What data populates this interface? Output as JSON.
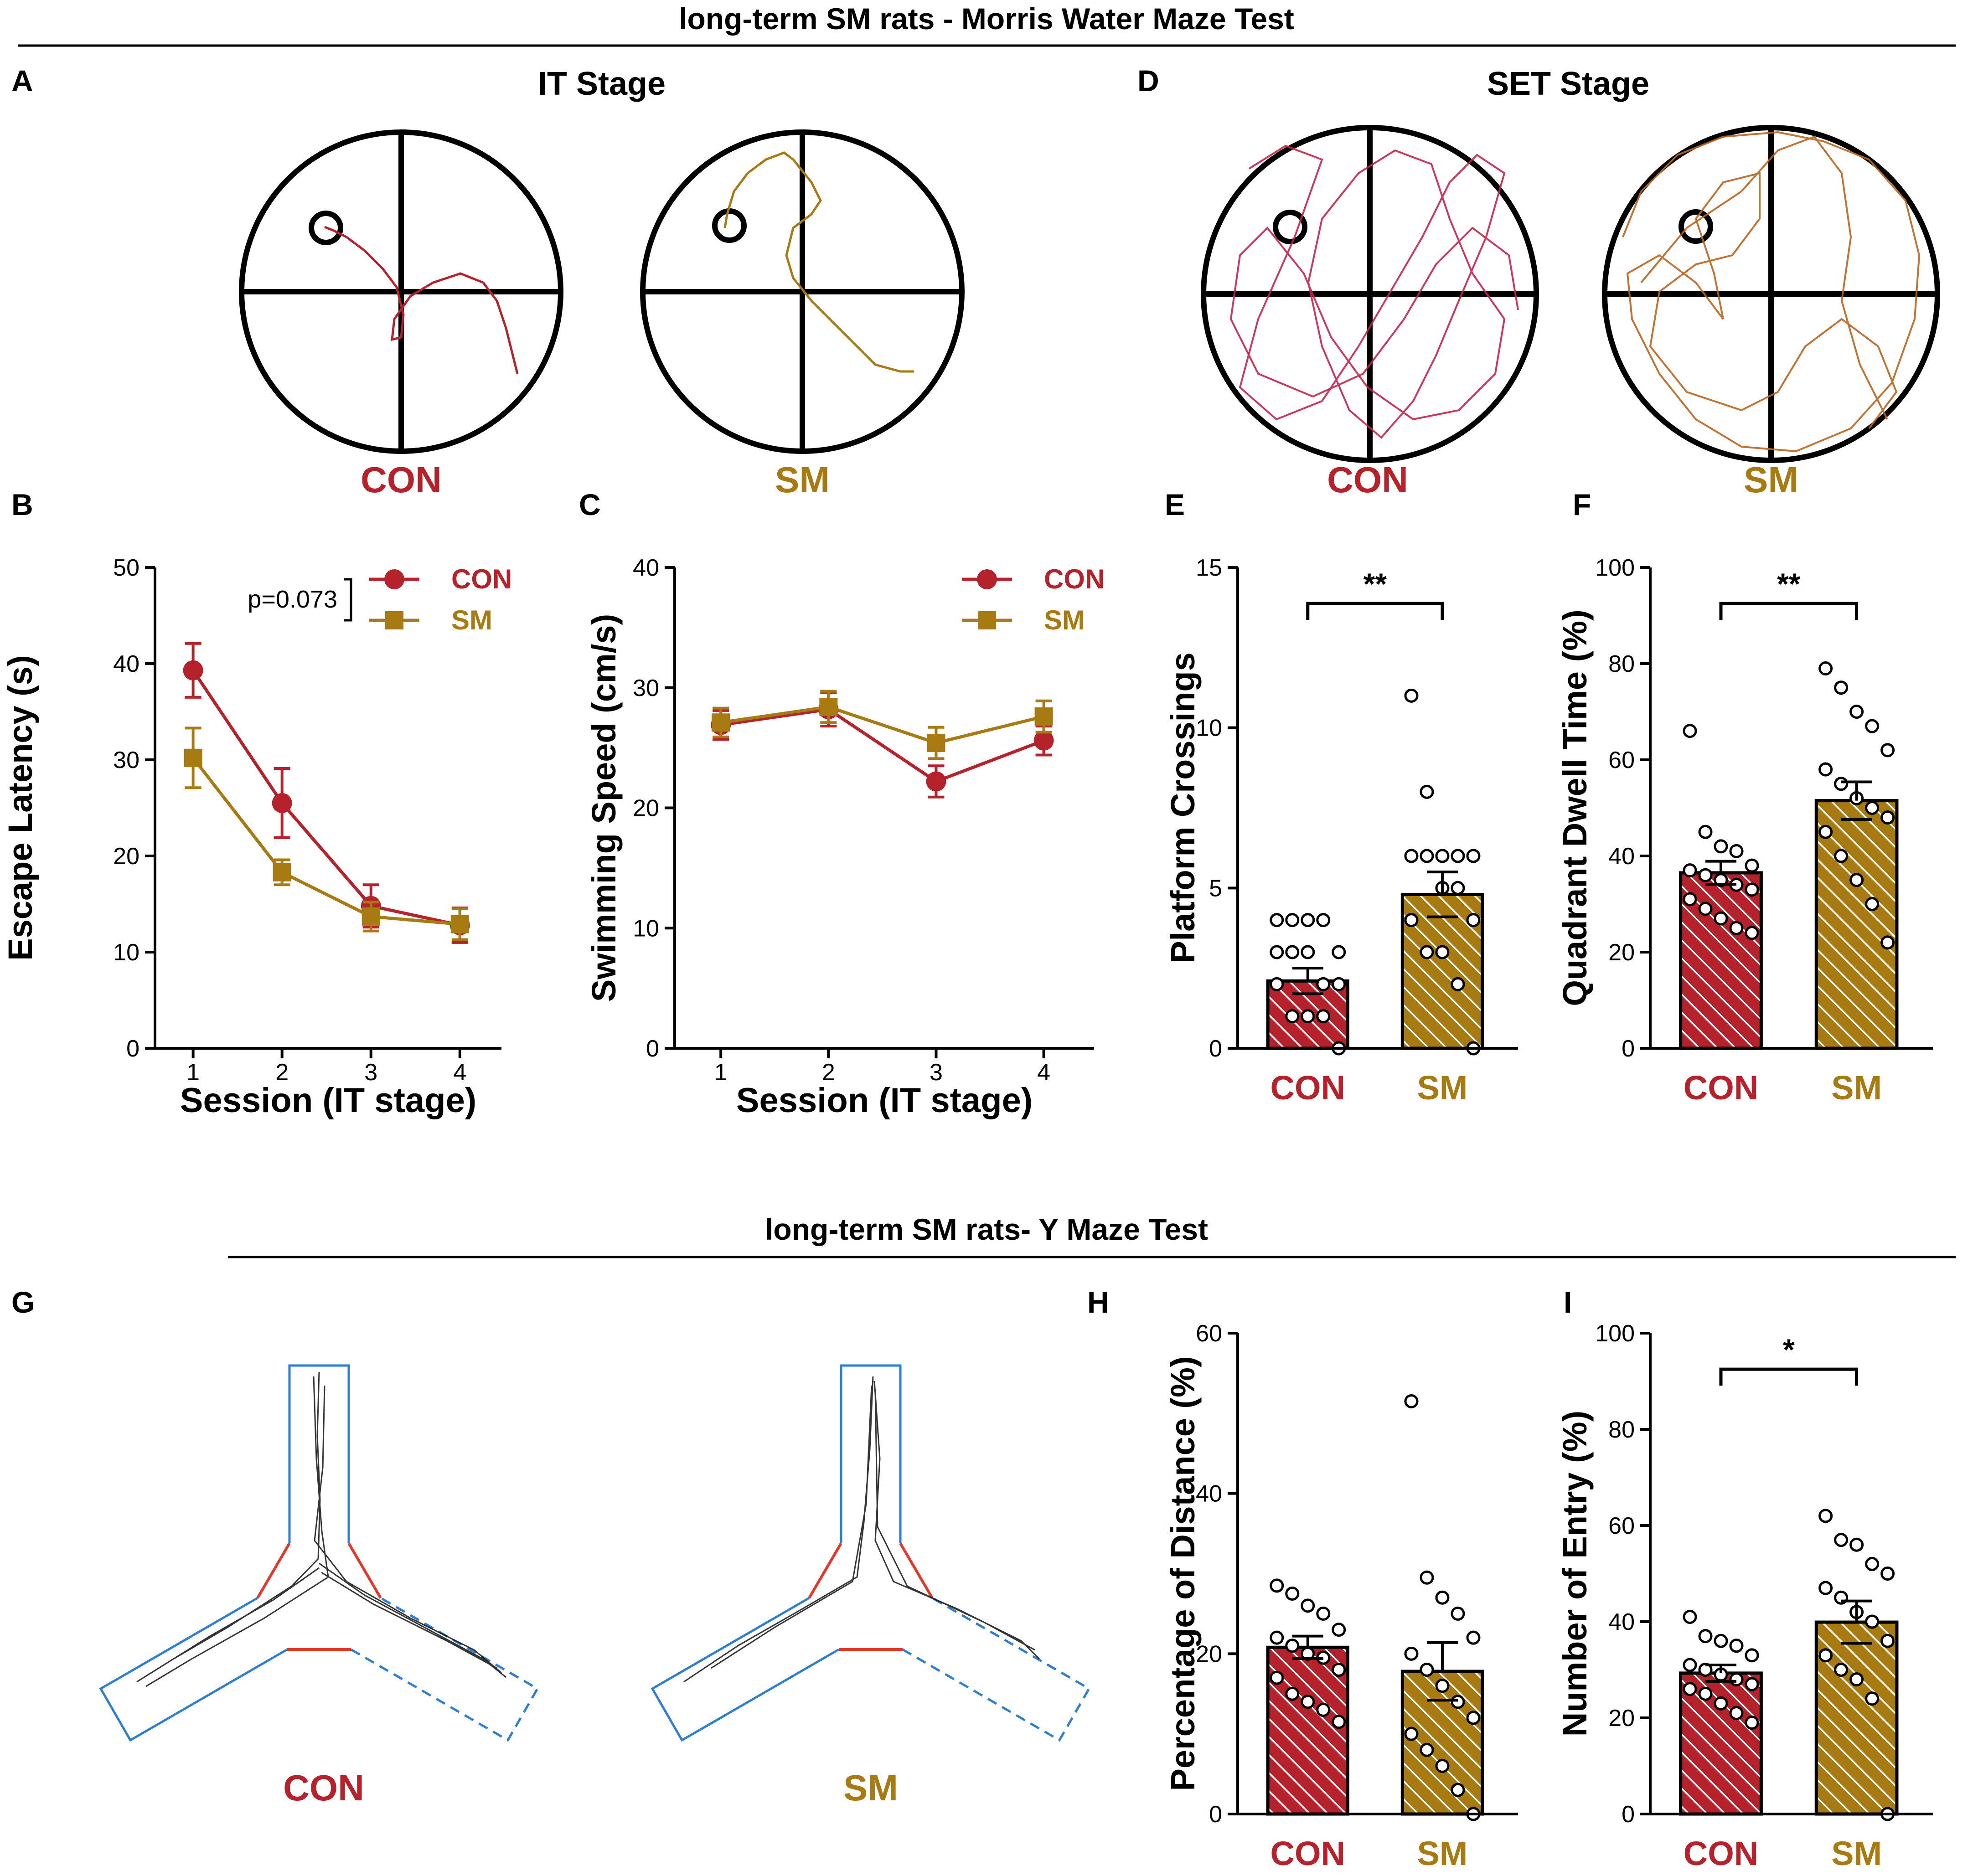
{
  "colors": {
    "con": "#b5222b",
    "sm": "#a77a12",
    "black": "#000000",
    "maze_blue": "#2f7fd0",
    "maze_red": "#e03a2e",
    "track": "#111111"
  },
  "sections": {
    "mwm_title": "long-term SM rats - Morris Water Maze Test",
    "ymaze_title": "long-term SM rats- Y Maze Test"
  },
  "panels": {
    "A": {
      "letter": "A",
      "title": "IT Stage",
      "left_label": "CON",
      "right_label": "SM"
    },
    "D": {
      "letter": "D",
      "title": "SET Stage",
      "left_label": "CON",
      "right_label": "SM"
    },
    "G": {
      "letter": "G",
      "left_label": "CON",
      "right_label": "SM"
    }
  },
  "chart_data": [
    {
      "id": "B",
      "letter": "B",
      "type": "line",
      "xlabel": "Session (IT stage)",
      "ylabel": "Escape Latency (s)",
      "categories": [
        "1",
        "2",
        "3",
        "4"
      ],
      "ylim": [
        0,
        50
      ],
      "yticks": [
        0,
        10,
        20,
        30,
        40,
        50
      ],
      "annotation": "p=0.073",
      "series": [
        {
          "name": "CON",
          "color": "#b5222b",
          "marker": "circle",
          "values": [
            39.3,
            25.5,
            14.8,
            12.8
          ],
          "errors": [
            2.8,
            3.6,
            2.2,
            1.8
          ]
        },
        {
          "name": "SM",
          "color": "#a77a12",
          "marker": "square",
          "values": [
            30.2,
            18.3,
            13.7,
            12.9
          ],
          "errors": [
            3.1,
            1.3,
            1.5,
            1.6
          ]
        }
      ]
    },
    {
      "id": "C",
      "letter": "C",
      "type": "line",
      "xlabel": "Session (IT stage)",
      "ylabel": "Swimming Speed (cm/s)",
      "categories": [
        "1",
        "2",
        "3",
        "4"
      ],
      "ylim": [
        0,
        40
      ],
      "yticks": [
        0,
        10,
        20,
        30,
        40
      ],
      "series": [
        {
          "name": "CON",
          "color": "#b5222b",
          "marker": "circle",
          "values": [
            26.9,
            28.2,
            22.2,
            25.6
          ],
          "errors": [
            1.2,
            1.4,
            1.3,
            1.2
          ]
        },
        {
          "name": "SM",
          "color": "#a77a12",
          "marker": "square",
          "values": [
            27.1,
            28.4,
            25.4,
            27.6
          ],
          "errors": [
            1.2,
            1.3,
            1.3,
            1.3
          ]
        }
      ]
    },
    {
      "id": "E",
      "letter": "E",
      "type": "bar",
      "ylabel": "Platform Crossings",
      "categories": [
        "CON",
        "SM"
      ],
      "ylim": [
        0,
        15
      ],
      "yticks": [
        0,
        5,
        10,
        15
      ],
      "values": [
        2.1,
        4.8
      ],
      "errors": [
        0.4,
        0.7
      ],
      "significance": "**",
      "points": [
        [
          4,
          4,
          4,
          4,
          3,
          3,
          3,
          3,
          2,
          2,
          2,
          1,
          1,
          1,
          0
        ],
        [
          11,
          8,
          6,
          6,
          6,
          6,
          6,
          5,
          5,
          4,
          4,
          3,
          3,
          2,
          0
        ]
      ]
    },
    {
      "id": "F",
      "letter": "F",
      "type": "bar",
      "ylabel": "Quadrant Dwell Time (%)",
      "categories": [
        "CON",
        "SM"
      ],
      "ylim": [
        0,
        100
      ],
      "yticks": [
        0,
        20,
        40,
        60,
        80,
        100
      ],
      "values": [
        36.5,
        51.5
      ],
      "errors": [
        2.4,
        3.9
      ],
      "significance": "**",
      "points": [
        [
          66,
          45,
          42,
          41,
          38,
          37,
          36,
          35,
          34,
          33,
          31,
          29,
          27,
          25,
          24
        ],
        [
          79,
          75,
          70,
          67,
          62,
          58,
          55,
          52,
          50,
          48,
          45,
          40,
          35,
          30,
          22
        ]
      ]
    },
    {
      "id": "H",
      "letter": "H",
      "type": "bar",
      "ylabel": "Percentage of Distance (%)",
      "categories": [
        "CON",
        "SM"
      ],
      "ylim": [
        0,
        60
      ],
      "yticks": [
        0,
        20,
        40,
        60
      ],
      "values": [
        20.8,
        17.8
      ],
      "errors": [
        1.4,
        3.6
      ],
      "significance": "",
      "points": [
        [
          28.5,
          27.5,
          26,
          25,
          23,
          22,
          21,
          20,
          19.5,
          18,
          17,
          15,
          14,
          13,
          11.5
        ],
        [
          51.5,
          29.5,
          27,
          25,
          22,
          20,
          18,
          16,
          14,
          12,
          10,
          8,
          6,
          3,
          0
        ]
      ]
    },
    {
      "id": "I",
      "letter": "I",
      "type": "bar",
      "ylabel": "Number of Entry (%)",
      "categories": [
        "CON",
        "SM"
      ],
      "ylim": [
        0,
        100
      ],
      "yticks": [
        0,
        20,
        40,
        60,
        80,
        100
      ],
      "values": [
        29.3,
        39.9
      ],
      "errors": [
        1.7,
        4.4
      ],
      "significance": "*",
      "points": [
        [
          41,
          37,
          36,
          35,
          33,
          31,
          30,
          29,
          28,
          27,
          26,
          25,
          23,
          21,
          19
        ],
        [
          62,
          57,
          56,
          52,
          50,
          47,
          45,
          42,
          40,
          36,
          33,
          30,
          28,
          24,
          0
        ]
      ]
    }
  ]
}
